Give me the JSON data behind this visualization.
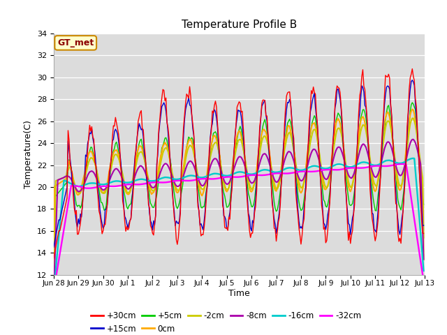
{
  "title": "Temperature Profile B",
  "xlabel": "Time",
  "ylabel": "Temperature(C)",
  "ylim": [
    12,
    34
  ],
  "yticks": [
    12,
    14,
    16,
    18,
    20,
    22,
    24,
    26,
    28,
    30,
    32,
    34
  ],
  "bg_color": "#dcdcdc",
  "annotation_text": "GT_met",
  "annotation_bg": "#ffffcc",
  "annotation_border": "#cc8800",
  "series_colors": {
    "+30cm": "#ff0000",
    "+15cm": "#0000cc",
    "+5cm": "#00cc00",
    "0cm": "#ffaa00",
    "-2cm": "#cccc00",
    "-8cm": "#aa00aa",
    "-16cm": "#00cccc",
    "-32cm": "#ff00ff"
  },
  "tick_labels": [
    "Jun 28",
    "Jun 29",
    "Jun 30",
    "Jul 1",
    "Jul 2",
    "Jul 3",
    "Jul 4",
    "Jul 5",
    "Jul 6",
    "Jul 7",
    "Jul 8",
    "Jul 9",
    "Jul 10",
    "Jul 11",
    "Jul 12",
    "Jul 13"
  ],
  "n_days": 15,
  "figsize": [
    6.4,
    4.8
  ],
  "dpi": 100
}
